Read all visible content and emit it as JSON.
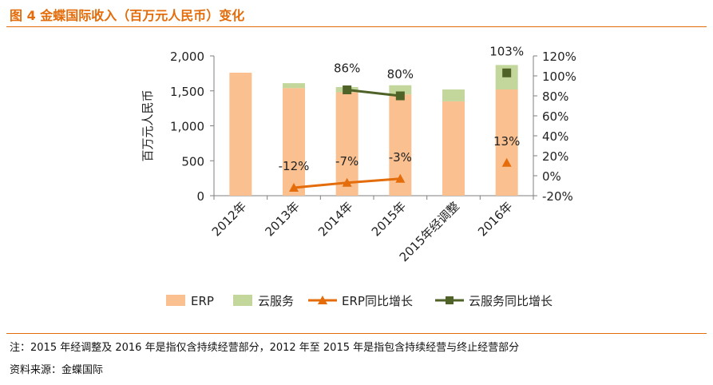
{
  "figure": {
    "title": "图 4 金蝶国际收入（百万元人民币）变化",
    "note": "注：2015 年经调整及 2016 年是指仅含持续经营部分，2012 年至 2015 年是指包含持续经营与终止经营部分",
    "source": "资料来源：金蝶国际"
  },
  "colors": {
    "accent": "#e46c0a",
    "erp": "#fac090",
    "cloud": "#c3d69b",
    "erp_growth": "#e46c0a",
    "cloud_growth": "#4f6228"
  },
  "chart_data": {
    "type": "bar",
    "stacked": true,
    "categories": [
      "2012年",
      "2013年",
      "2014年",
      "2015年",
      "2015年经调整",
      "2016年"
    ],
    "ylabel": "百万元人民币",
    "ylim": [
      0,
      2000
    ],
    "yticks": [
      "0",
      "500",
      "1,000",
      "1,500",
      "2,000"
    ],
    "y2lim": [
      -20,
      120
    ],
    "y2ticks": [
      "-20%",
      "0%",
      "20%",
      "40%",
      "60%",
      "80%",
      "100%",
      "120%"
    ],
    "series": [
      {
        "name": "ERP",
        "kind": "bar",
        "values": [
          1760,
          1540,
          1480,
          1450,
          1350,
          1520
        ]
      },
      {
        "name": "云服务",
        "kind": "bar",
        "values": [
          0,
          70,
          75,
          130,
          170,
          350
        ]
      }
    ],
    "lines": [
      {
        "name": "ERP同比增长",
        "marker": "triangle",
        "axis": "right",
        "values": [
          null,
          -12,
          -7,
          -3,
          null,
          13
        ],
        "labels": [
          "",
          "-12%",
          "-7%",
          "-3%",
          "",
          "13%"
        ],
        "connected": [
          1,
          2,
          3
        ]
      },
      {
        "name": "云服务同比增长",
        "marker": "square",
        "axis": "right",
        "values": [
          null,
          null,
          86,
          80,
          null,
          103
        ],
        "labels": [
          "",
          "",
          "86%",
          "80%",
          "",
          "103%"
        ],
        "connected": [
          2,
          3
        ]
      }
    ],
    "legend": [
      "ERP",
      "云服务",
      "ERP同比增长",
      "云服务同比增长"
    ],
    "legend_position": "bottom",
    "grid": false
  }
}
